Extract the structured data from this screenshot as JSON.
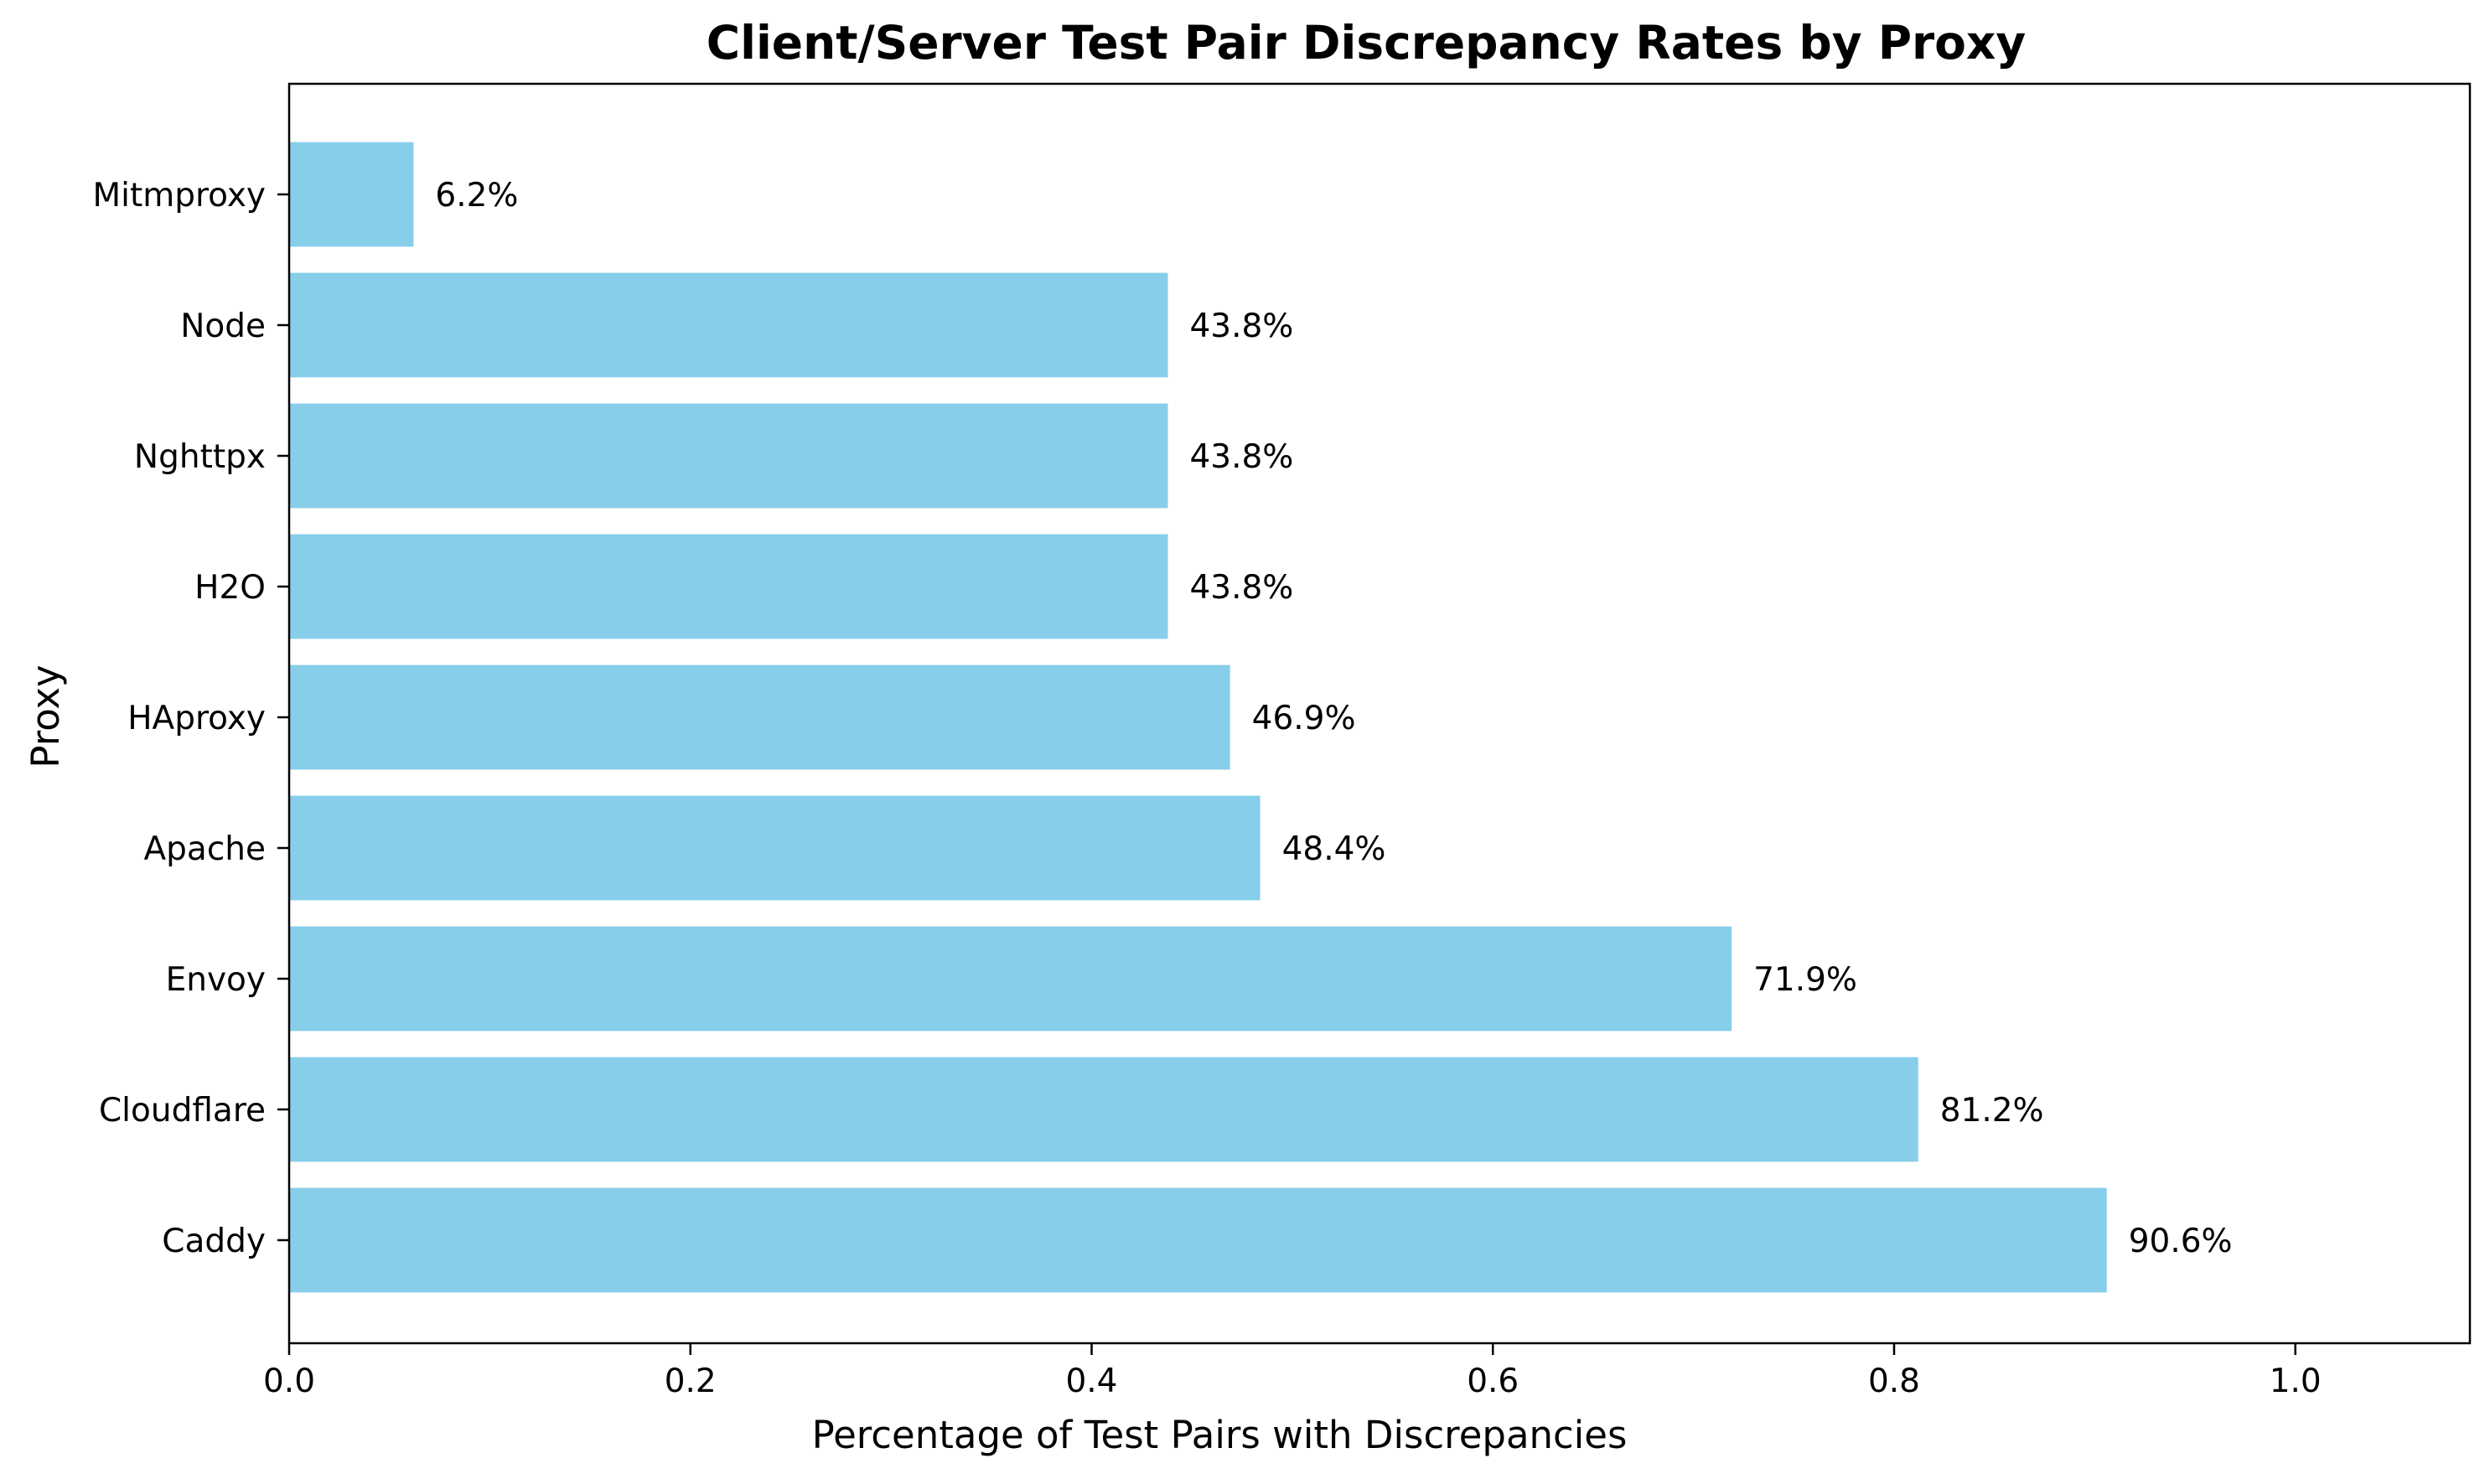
{
  "chart_data": {
    "type": "bar",
    "orientation": "horizontal",
    "title": "Client/Server Test Pair Discrepancy Rates by Proxy",
    "xlabel": "Percentage of Test Pairs with Discrepancies",
    "ylabel": "Proxy",
    "categories": [
      "Caddy",
      "Cloudflare",
      "Envoy",
      "Apache",
      "HAproxy",
      "H2O",
      "Nghttpx",
      "Node",
      "Mitmproxy"
    ],
    "values": [
      0.906,
      0.812,
      0.719,
      0.484,
      0.469,
      0.438,
      0.438,
      0.438,
      0.062
    ],
    "value_labels": [
      "90.6%",
      "81.2%",
      "71.9%",
      "48.4%",
      "46.9%",
      "43.8%",
      "43.8%",
      "43.8%",
      "6.2%"
    ],
    "xlim": [
      0,
      1.087
    ],
    "xticks": [
      0.0,
      0.2,
      0.4,
      0.6,
      0.8,
      1.0
    ],
    "xtick_labels": [
      "0.0",
      "0.2",
      "0.4",
      "0.6",
      "0.8",
      "1.0"
    ],
    "bar_color": "#87ceeb",
    "grid": false,
    "legend": null
  }
}
